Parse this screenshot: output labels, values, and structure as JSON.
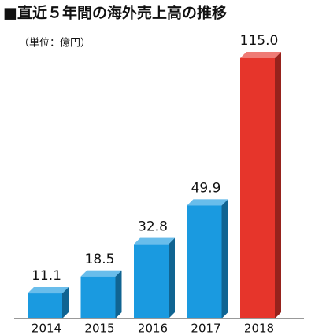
{
  "chart_data": {
    "type": "bar3d",
    "title": "■直近５年間の海外売上高の推移",
    "subtitle": "（単位：億円）",
    "categories": [
      "2014",
      "2015",
      "2016",
      "2017",
      "2018"
    ],
    "values": [
      11.1,
      18.5,
      32.8,
      49.9,
      115.0
    ],
    "value_labels": [
      "11.1",
      "18.5",
      "32.8",
      "49.9",
      "115.0"
    ],
    "colors": [
      "#1a9ae0",
      "#1a9ae0",
      "#1a9ae0",
      "#1a9ae0",
      "#e6352b"
    ]
  }
}
